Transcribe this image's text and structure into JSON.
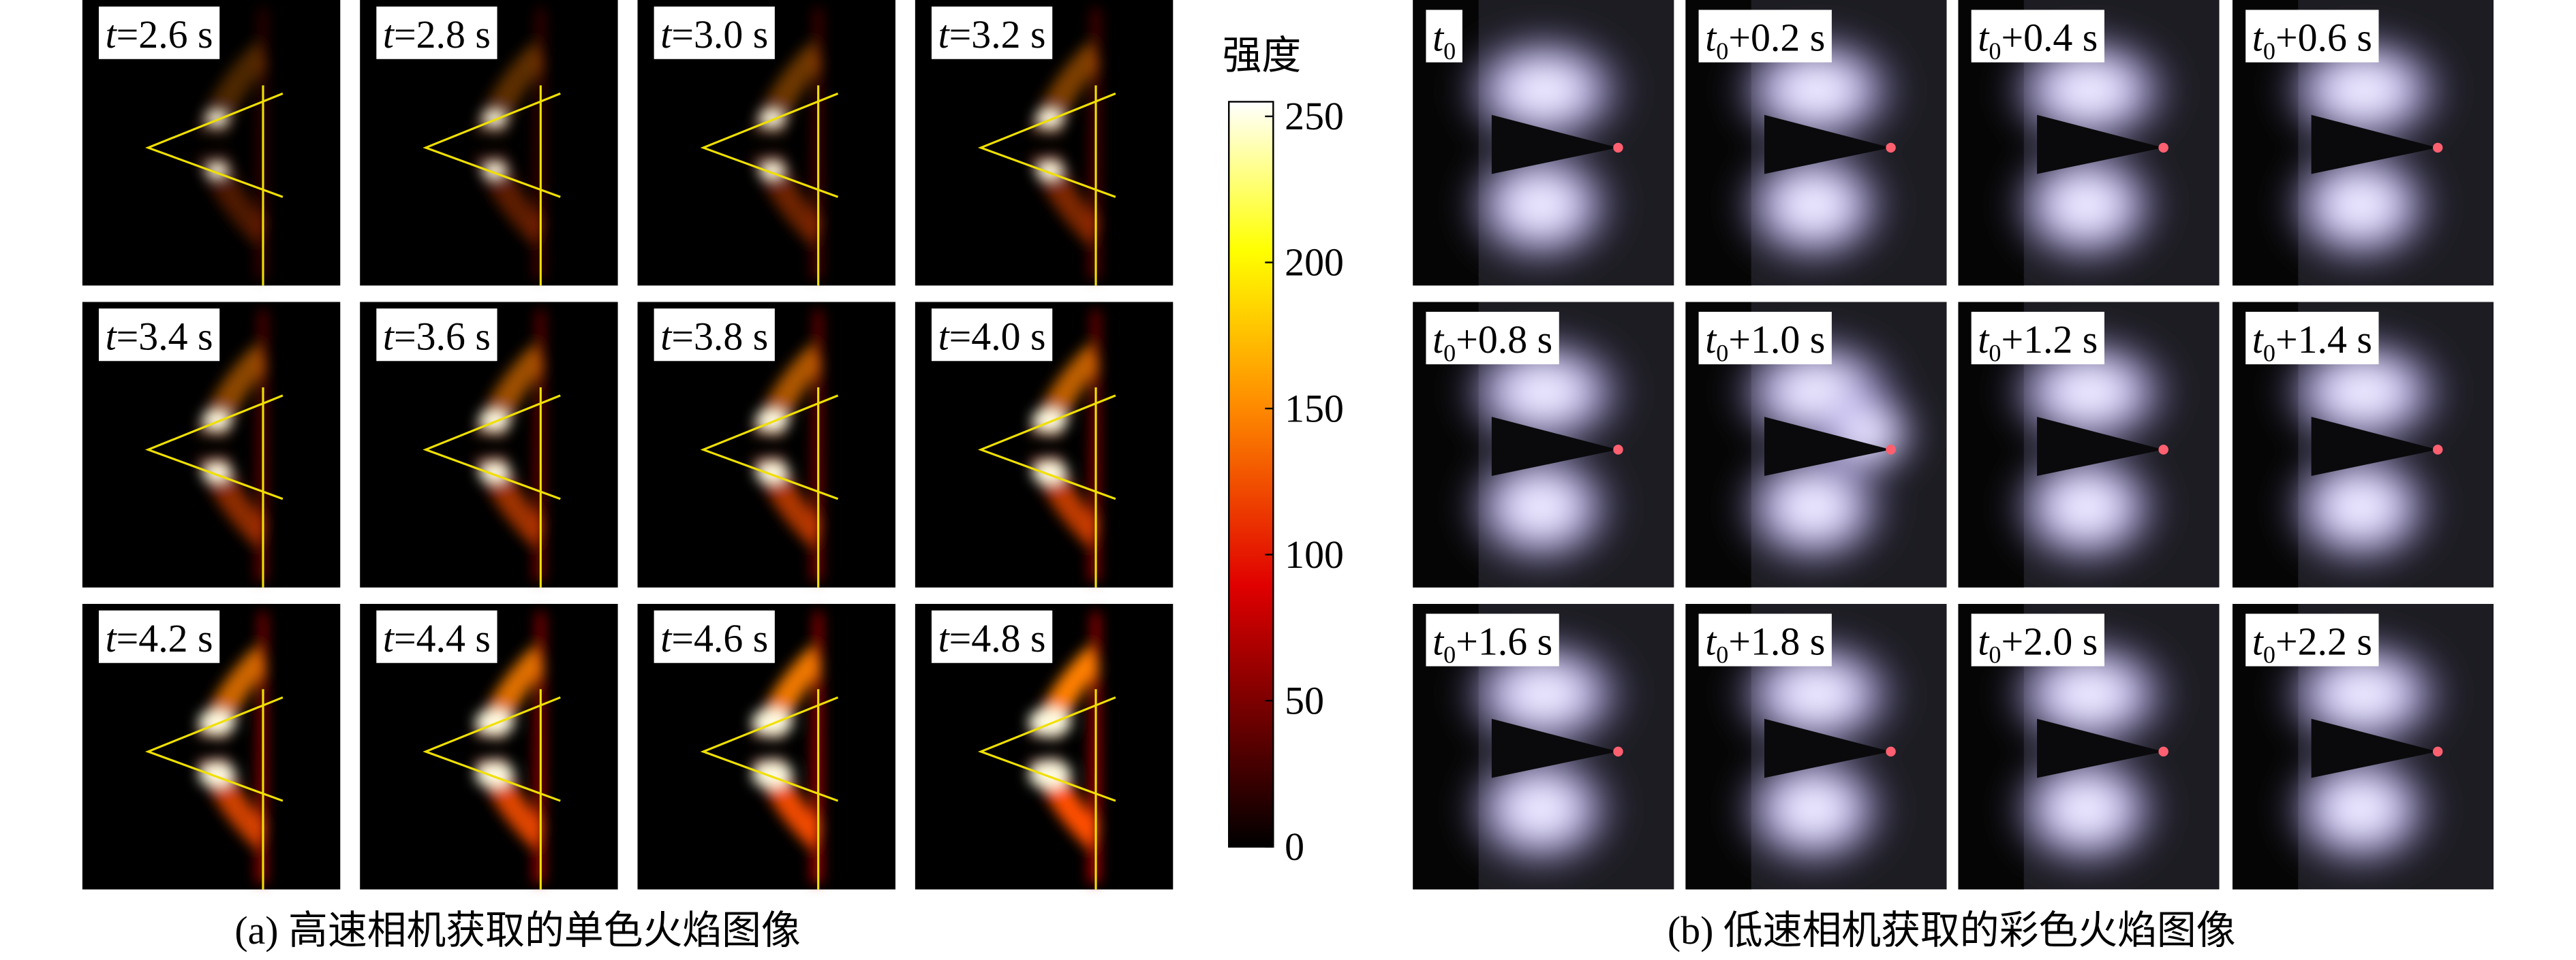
{
  "panel_a": {
    "caption": "(a) 高速相机获取的单色火焰图像",
    "frames": [
      {
        "var": "t",
        "text": "=2.6 s"
      },
      {
        "var": "t",
        "text": "=2.8 s"
      },
      {
        "var": "t",
        "text": "=3.0 s"
      },
      {
        "var": "t",
        "text": "=3.2 s"
      },
      {
        "var": "t",
        "text": "=3.4 s"
      },
      {
        "var": "t",
        "text": "=3.6 s"
      },
      {
        "var": "t",
        "text": "=3.8 s"
      },
      {
        "var": "t",
        "text": "=4.0 s"
      },
      {
        "var": "t",
        "text": "=4.2 s"
      },
      {
        "var": "t",
        "text": "=4.4 s"
      },
      {
        "var": "t",
        "text": "=4.6 s"
      },
      {
        "var": "t",
        "text": "=4.8 s"
      }
    ]
  },
  "colorbar": {
    "title": "强度",
    "clim": [
      0,
      255
    ],
    "ticks": [
      0,
      50,
      100,
      150,
      200,
      250
    ]
  },
  "panel_b": {
    "caption": "(b) 低速相机获取的彩色火焰图像",
    "frames": [
      {
        "var": "t",
        "sub": "0"
      },
      {
        "var": "t",
        "sub": "0",
        "text": "+0.2 s"
      },
      {
        "var": "t",
        "sub": "0",
        "text": "+0.4 s"
      },
      {
        "var": "t",
        "sub": "0",
        "text": "+0.6 s"
      },
      {
        "var": "t",
        "sub": "0",
        "text": "+0.8 s"
      },
      {
        "var": "t",
        "sub": "0",
        "text": "+1.0 s"
      },
      {
        "var": "t",
        "sub": "0",
        "text": "+1.2 s"
      },
      {
        "var": "t",
        "sub": "0",
        "text": "+1.4 s"
      },
      {
        "var": "t",
        "sub": "0",
        "text": "+1.6 s"
      },
      {
        "var": "t",
        "sub": "0",
        "text": "+1.8 s"
      },
      {
        "var": "t",
        "sub": "0",
        "text": "+2.0 s"
      },
      {
        "var": "t",
        "sub": "0",
        "text": "+2.2 s"
      }
    ]
  }
}
